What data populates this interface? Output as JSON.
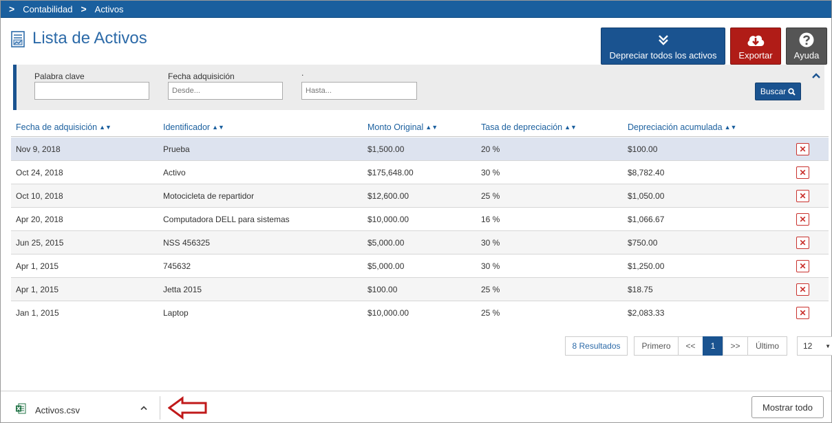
{
  "breadcrumb": [
    "Contabilidad",
    "Activos"
  ],
  "page": {
    "title": "Lista de Activos"
  },
  "actions": {
    "depreciate_label": "Depreciar todos los activos",
    "export_label": "Exportar",
    "help_label": "Ayuda"
  },
  "filters": {
    "keyword_label": "Palabra clave",
    "keyword_value": "",
    "date_label": "Fecha adquisición",
    "from_placeholder": "Desde...",
    "to_label": ".",
    "to_placeholder": "Hasta...",
    "search_label": "Buscar"
  },
  "table": {
    "columns": [
      "Fecha de adquisición",
      "Identificador",
      "Monto Original",
      "Tasa de depreciación",
      "Depreciación acumulada"
    ],
    "rows": [
      {
        "date": "Nov 9, 2018",
        "id": "Prueba",
        "amount": "$1,500.00",
        "rate": "20 %",
        "accum": "$100.00"
      },
      {
        "date": "Oct 24, 2018",
        "id": "Activo",
        "amount": "$175,648.00",
        "rate": "30 %",
        "accum": "$8,782.40"
      },
      {
        "date": "Oct 10, 2018",
        "id": "Motocicleta de repartidor",
        "amount": "$12,600.00",
        "rate": "25 %",
        "accum": "$1,050.00"
      },
      {
        "date": "Apr 20, 2018",
        "id": "Computadora DELL para sistemas",
        "amount": "$10,000.00",
        "rate": "16 %",
        "accum": "$1,066.67"
      },
      {
        "date": "Jun 25, 2015",
        "id": "NSS 456325",
        "amount": "$5,000.00",
        "rate": "30 %",
        "accum": "$750.00"
      },
      {
        "date": "Apr 1, 2015",
        "id": "745632",
        "amount": "$5,000.00",
        "rate": "30 %",
        "accum": "$1,250.00"
      },
      {
        "date": "Apr 1, 2015",
        "id": "Jetta 2015",
        "amount": "$100.00",
        "rate": "25 %",
        "accum": "$18.75"
      },
      {
        "date": "Jan 1, 2015",
        "id": "Laptop",
        "amount": "$10,000.00",
        "rate": "25 %",
        "accum": "$2,083.33"
      }
    ]
  },
  "pagination": {
    "results": "8 Resultados",
    "first": "Primero",
    "prev": "<<",
    "current": "1",
    "next": ">>",
    "last": "Último",
    "page_size": "12"
  },
  "download_bar": {
    "file_name": "Activos.csv",
    "show_all_label": "Mostrar todo"
  },
  "colors": {
    "primary": "#1a5390",
    "topbar": "#1a5f9e",
    "danger": "#b01c17",
    "help": "#555555",
    "annotation_arrow": "#c0191a"
  },
  "icons": {
    "breadcrumb_sep": "chevron-right-icon",
    "title": "report-icon",
    "depreciate": "double-chevron-down-icon",
    "export": "cloud-download-icon",
    "help": "question-circle-icon",
    "search": "search-icon",
    "delete": "close-icon",
    "collapse": "chevron-up-icon",
    "file": "excel-file-icon"
  }
}
